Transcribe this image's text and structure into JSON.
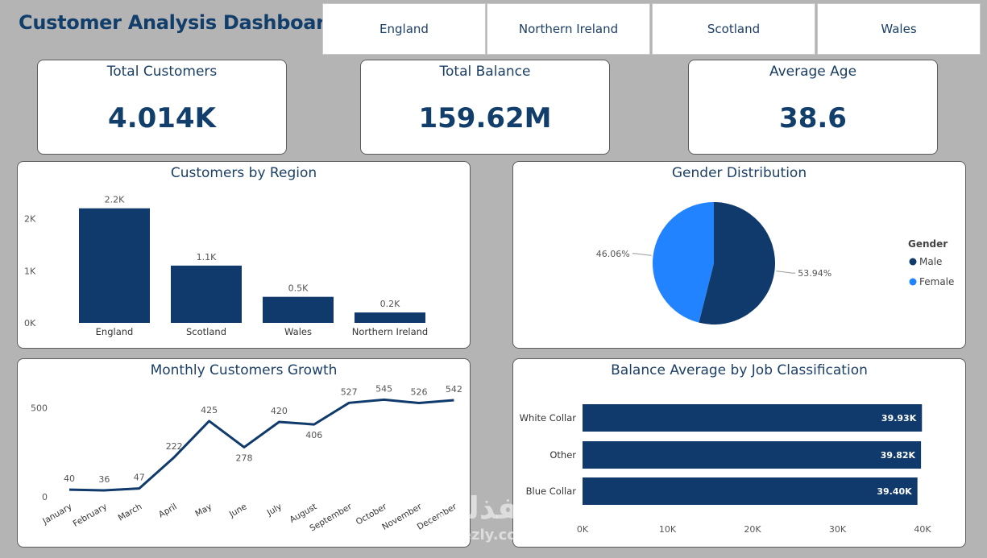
{
  "header": {
    "title": "Customer Analysis Dashboard"
  },
  "slicers": [
    "England",
    "Northern Ireland",
    "Scotland",
    "Wales"
  ],
  "kpis": {
    "total_customers": {
      "label": "Total Customers",
      "value": "4.014K"
    },
    "total_balance": {
      "label": "Total Balance",
      "value": "159.62M"
    },
    "average_age": {
      "label": "Average Age",
      "value": "38.6"
    }
  },
  "colors": {
    "navy": "#0f3a6b",
    "blue": "#2183ff",
    "background": "#b4b4b4"
  },
  "region_chart": {
    "title": "Customers by Region",
    "chart_data": {
      "type": "bar",
      "categories": [
        "England",
        "Scotland",
        "Wales",
        "Northern Ireland"
      ],
      "values": [
        2200,
        1100,
        500,
        200
      ],
      "data_labels": [
        "2.2K",
        "1.1K",
        "0.5K",
        "0.2K"
      ],
      "y_ticks": [
        "0K",
        "1K",
        "2K"
      ],
      "ylim": [
        0,
        2350
      ]
    }
  },
  "gender_chart": {
    "title": "Gender Distribution",
    "legend_title": "Gender",
    "chart_data": {
      "type": "pie",
      "labels": [
        "Male",
        "Female"
      ],
      "values": [
        53.94,
        46.06
      ],
      "data_labels": [
        "53.94%",
        "46.06%"
      ],
      "legend": "right"
    }
  },
  "monthly_chart": {
    "title": "Monthly Customers Growth",
    "chart_data": {
      "type": "line",
      "x": [
        "January",
        "February",
        "March",
        "April",
        "May",
        "June",
        "July",
        "August",
        "September",
        "October",
        "November",
        "December"
      ],
      "values": [
        40,
        36,
        47,
        222,
        425,
        278,
        420,
        406,
        527,
        545,
        526,
        542
      ],
      "y_ticks": [
        "0",
        "500"
      ],
      "ylim": [
        0,
        560
      ]
    }
  },
  "job_chart": {
    "title": "Balance Average by Job Classification",
    "chart_data": {
      "type": "bar",
      "orientation": "horizontal",
      "categories": [
        "White Collar",
        "Other",
        "Blue Collar"
      ],
      "values": [
        39930,
        39820,
        39400
      ],
      "data_labels": [
        "39.93K",
        "39.82K",
        "39.40K"
      ],
      "x_ticks": [
        "0K",
        "10K",
        "20K",
        "30K",
        "40K"
      ],
      "xlim": [
        0,
        40000
      ]
    }
  },
  "watermark": {
    "arabic": "نفذلي",
    "latin": "nafezly.com"
  }
}
